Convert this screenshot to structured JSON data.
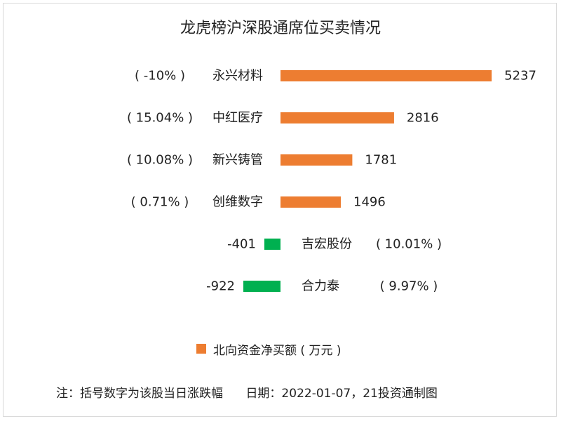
{
  "chart_data": {
    "type": "bar",
    "orientation": "horizontal",
    "title": "龙虎榜沪深股通席位买卖情况",
    "categories": [
      "永兴材料",
      "中红医疗",
      "新兴铸管",
      "创维数字",
      "吉宏股份",
      "合力泰"
    ],
    "changes": [
      "( -10% )",
      "( 15.04% )",
      "( 10.08% )",
      "( 0.71% )",
      "( 10.01% )",
      "( 9.97% )"
    ],
    "series": [
      {
        "name": "北向资金净买额 ( 万元 )",
        "values": [
          5237,
          2816,
          1781,
          1496,
          -401,
          -922
        ]
      }
    ],
    "colors": {
      "positive": "#ed7d31",
      "negative": "#00b050"
    },
    "legend_position": "bottom",
    "grid": false
  },
  "footer": {
    "note": "注：括号数字为该股当日涨跌幅",
    "date": "日期：2022-01-07，21投资通制图"
  }
}
